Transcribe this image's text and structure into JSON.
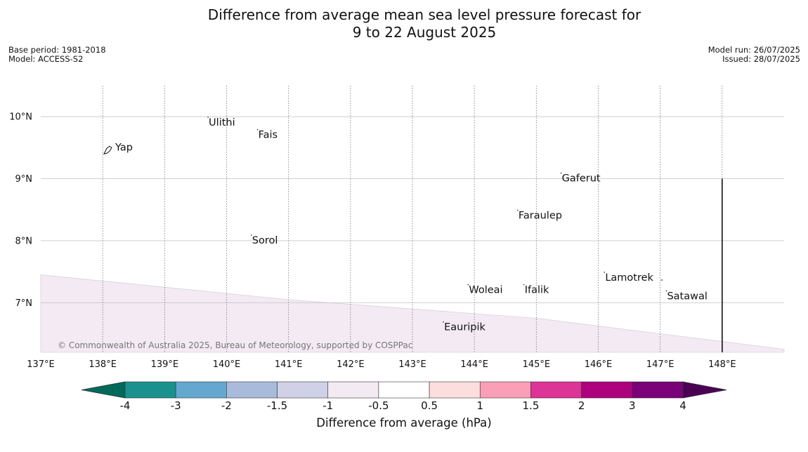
{
  "title_line1": "Difference from average mean sea level pressure forecast for",
  "title_line2": "9 to 22 August 2025",
  "base_period": "Base period: 1981-2018",
  "model": "Model: ACCESS-S2",
  "model_run": "Model run: 26/07/2025",
  "issued": "Issued: 28/07/2025",
  "copyright": "© Commonwealth of Australia 2025, Bureau of Meteorology, supported by COSPPac",
  "map": {
    "lon_range": [
      137,
      149
    ],
    "lat_range": [
      6.2,
      10.5
    ],
    "lon_ticks": [
      {
        "value": 137,
        "label": "137°E"
      },
      {
        "value": 138,
        "label": "138°E"
      },
      {
        "value": 139,
        "label": "139°E"
      },
      {
        "value": 140,
        "label": "140°E"
      },
      {
        "value": 141,
        "label": "141°E"
      },
      {
        "value": 142,
        "label": "142°E"
      },
      {
        "value": 143,
        "label": "143°E"
      },
      {
        "value": 144,
        "label": "144°E"
      },
      {
        "value": 145,
        "label": "145°E"
      },
      {
        "value": 146,
        "label": "146°E"
      },
      {
        "value": 147,
        "label": "147°E"
      },
      {
        "value": 148,
        "label": "148°E"
      }
    ],
    "lat_ticks": [
      {
        "value": 10,
        "label": "10°N"
      },
      {
        "value": 9,
        "label": "9°N"
      },
      {
        "value": 8,
        "label": "8°N"
      },
      {
        "value": 7,
        "label": "7°N"
      }
    ],
    "places": [
      {
        "name": "Yap",
        "lon": 138.1,
        "lat": 9.5
      },
      {
        "name": "Ulithi",
        "lon": 139.7,
        "lat": 9.9
      },
      {
        "name": "Fais",
        "lon": 140.5,
        "lat": 9.7
      },
      {
        "name": "Gaferut",
        "lon": 145.4,
        "lat": 9.0
      },
      {
        "name": "Faraulep",
        "lon": 144.7,
        "lat": 8.4
      },
      {
        "name": "Sorol",
        "lon": 140.4,
        "lat": 8.0
      },
      {
        "name": "Woleai",
        "lon": 143.9,
        "lat": 7.2
      },
      {
        "name": "Ifalik",
        "lon": 144.8,
        "lat": 7.2
      },
      {
        "name": "Lamotrek",
        "lon": 146.1,
        "lat": 7.4
      },
      {
        "name": "Satawal",
        "lon": 147.1,
        "lat": 7.1
      },
      {
        "name": "Eauripik",
        "lon": 143.5,
        "lat": 6.6
      }
    ],
    "anomaly_region": {
      "category": "-0.5 to -1 hPa",
      "color": "#f3eaf3",
      "boundary": [
        [
          137,
          7.45
        ],
        [
          139,
          7.25
        ],
        [
          141,
          7.05
        ],
        [
          143,
          6.9
        ],
        [
          145,
          6.75
        ],
        [
          147,
          6.5
        ],
        [
          149,
          6.25
        ]
      ]
    },
    "meridian_line": {
      "lon": 148,
      "lat_from": 6.2,
      "lat_to": 9.0
    }
  },
  "colorbar": {
    "title": "Difference from average (hPa)",
    "low_extend_color": "#006a5a",
    "high_extend_color": "#4b0055",
    "bins": [
      {
        "color": "#1b918f"
      },
      {
        "color": "#64a8d0"
      },
      {
        "color": "#a8bbdb"
      },
      {
        "color": "#d0d1e6"
      },
      {
        "color": "#f3eaf3"
      },
      {
        "color": "#ffffff"
      },
      {
        "color": "#fddede"
      },
      {
        "color": "#fa9fb5"
      },
      {
        "color": "#dd3497"
      },
      {
        "color": "#ae017e"
      },
      {
        "color": "#7a0177"
      }
    ],
    "tick_labels": [
      "-4",
      "-3",
      "-2",
      "-1.5",
      "-1",
      "-0.5",
      "0.5",
      "1",
      "1.5",
      "2",
      "3",
      "4"
    ]
  }
}
